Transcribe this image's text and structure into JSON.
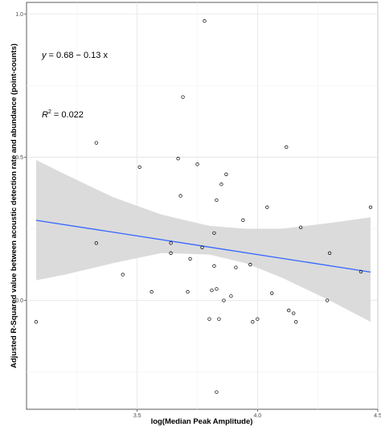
{
  "chart_data": {
    "type": "scatter",
    "title": "",
    "xlabel": "log(Median Peak Amplitude)",
    "ylabel": "Adjusted R-Squared value between acoustic detection rate and abundance (point-counts)",
    "xlim": [
      3.04,
      4.5
    ],
    "ylim": [
      -0.38,
      1.04
    ],
    "x_ticks": [
      3.5,
      4.0,
      4.5
    ],
    "x_tick_labels": [
      "3.5",
      "4.0",
      "4.5"
    ],
    "y_ticks": [
      0.0,
      0.5,
      1.0
    ],
    "y_tick_labels": [
      "0.0",
      "0.5",
      "1.0"
    ],
    "grid": true,
    "annotations": {
      "equation_prefix": "y",
      "equation_rest": " = 0.68 − 0.13 x",
      "r2_base": "R",
      "r2_exp": "2",
      "r2_rest": " = 0.022"
    },
    "fit_line": {
      "intercept": 0.68,
      "slope": -0.13,
      "color": "#3366ff"
    },
    "confidence_band": {
      "x": [
        3.08,
        3.2,
        3.4,
        3.6,
        3.8,
        3.95,
        4.1,
        4.3,
        4.47
      ],
      "lower": [
        0.07,
        0.09,
        0.13,
        0.165,
        0.16,
        0.13,
        0.08,
        0.0,
        -0.075
      ],
      "upper": [
        0.49,
        0.44,
        0.36,
        0.3,
        0.26,
        0.25,
        0.25,
        0.27,
        0.29
      ],
      "color": "#d9d9d9"
    },
    "points": [
      {
        "x": 3.08,
        "y": -0.075
      },
      {
        "x": 3.33,
        "y": 0.55
      },
      {
        "x": 3.33,
        "y": 0.2
      },
      {
        "x": 3.44,
        "y": 0.09
      },
      {
        "x": 3.51,
        "y": 0.465
      },
      {
        "x": 3.56,
        "y": 0.03
      },
      {
        "x": 3.64,
        "y": 0.2
      },
      {
        "x": 3.64,
        "y": 0.165
      },
      {
        "x": 3.67,
        "y": 0.495
      },
      {
        "x": 3.68,
        "y": 0.365
      },
      {
        "x": 3.69,
        "y": 0.71
      },
      {
        "x": 3.71,
        "y": 0.03
      },
      {
        "x": 3.72,
        "y": 0.145
      },
      {
        "x": 3.75,
        "y": 0.475
      },
      {
        "x": 3.77,
        "y": 0.185
      },
      {
        "x": 3.78,
        "y": 0.975
      },
      {
        "x": 3.8,
        "y": -0.065
      },
      {
        "x": 3.81,
        "y": 0.035
      },
      {
        "x": 3.82,
        "y": 0.235
      },
      {
        "x": 3.82,
        "y": 0.12
      },
      {
        "x": 3.83,
        "y": 0.35
      },
      {
        "x": 3.83,
        "y": 0.04
      },
      {
        "x": 3.83,
        "y": -0.32
      },
      {
        "x": 3.84,
        "y": -0.065
      },
      {
        "x": 3.85,
        "y": 0.405
      },
      {
        "x": 3.86,
        "y": 0.0
      },
      {
        "x": 3.87,
        "y": 0.44
      },
      {
        "x": 3.89,
        "y": 0.015
      },
      {
        "x": 3.91,
        "y": 0.115
      },
      {
        "x": 3.94,
        "y": 0.28
      },
      {
        "x": 3.97,
        "y": 0.125
      },
      {
        "x": 3.98,
        "y": -0.075
      },
      {
        "x": 4.0,
        "y": -0.065
      },
      {
        "x": 4.04,
        "y": 0.325
      },
      {
        "x": 4.06,
        "y": 0.025
      },
      {
        "x": 4.12,
        "y": 0.535
      },
      {
        "x": 4.13,
        "y": -0.035
      },
      {
        "x": 4.15,
        "y": -0.045
      },
      {
        "x": 4.16,
        "y": -0.075
      },
      {
        "x": 4.18,
        "y": 0.255
      },
      {
        "x": 4.29,
        "y": 0.0
      },
      {
        "x": 4.3,
        "y": 0.165
      },
      {
        "x": 4.43,
        "y": 0.1
      },
      {
        "x": 4.47,
        "y": 0.325
      }
    ]
  }
}
